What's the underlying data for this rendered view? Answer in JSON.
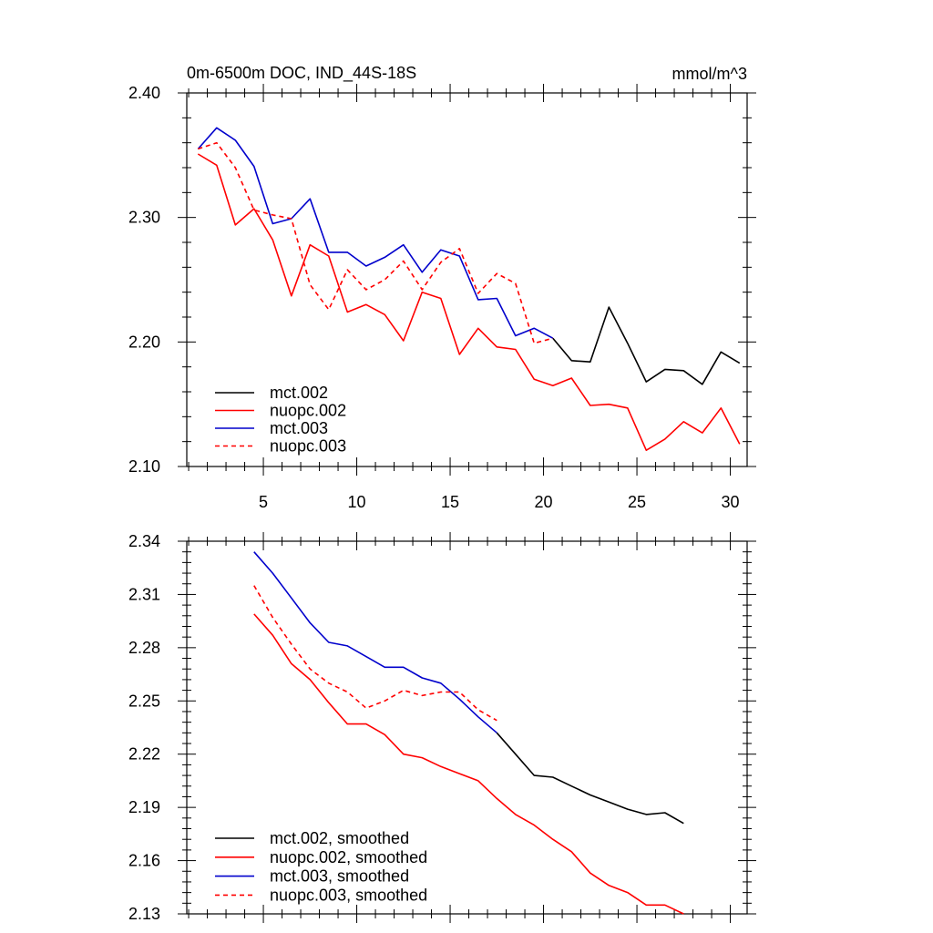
{
  "chart_data": [
    {
      "type": "line",
      "title": "0m-6500m DOC, IND_44S-18S",
      "units": "mmol/m^3",
      "xlabel": "",
      "ylabel": "",
      "xlim": [
        0.9,
        30.9
      ],
      "ylim": [
        2.1,
        2.4
      ],
      "yticks": [
        2.1,
        2.2,
        2.3,
        2.4
      ],
      "ytick_labels": [
        "2.10",
        "2.20",
        "2.30",
        "2.40"
      ],
      "xticks": [
        5,
        10,
        15,
        20,
        25,
        30
      ],
      "xtick_labels": [
        "5",
        "10",
        "15",
        "20",
        "25",
        "30"
      ],
      "legend_position": "bottom-left",
      "series": [
        {
          "name": "mct.002",
          "color": "#000000",
          "dash": "solid",
          "x": [
            20.5,
            21.5,
            22.5,
            23.5,
            24.5,
            25.5,
            26.5,
            27.5,
            28.5,
            29.5,
            30.5
          ],
          "values": [
            2.203,
            2.185,
            2.184,
            2.228,
            2.199,
            2.168,
            2.178,
            2.177,
            2.166,
            2.192,
            2.183
          ]
        },
        {
          "name": "nuopc.002",
          "color": "#ff0000",
          "dash": "solid",
          "x": [
            1.5,
            2.5,
            3.5,
            4.5,
            5.5,
            6.5,
            7.5,
            8.5,
            9.5,
            10.5,
            11.5,
            12.5,
            13.5,
            14.5,
            15.5,
            16.5,
            17.5,
            18.5,
            19.5,
            20.5,
            21.5,
            22.5,
            23.5,
            24.5,
            25.5,
            26.5,
            27.5,
            28.5,
            29.5,
            30.5
          ],
          "values": [
            2.351,
            2.342,
            2.294,
            2.307,
            2.282,
            2.237,
            2.278,
            2.269,
            2.224,
            2.23,
            2.222,
            2.201,
            2.24,
            2.235,
            2.19,
            2.211,
            2.196,
            2.194,
            2.17,
            2.165,
            2.171,
            2.149,
            2.15,
            2.147,
            2.113,
            2.122,
            2.136,
            2.127,
            2.147,
            2.118
          ]
        },
        {
          "name": "mct.003",
          "color": "#0000cc",
          "dash": "solid",
          "x": [
            1.5,
            2.5,
            3.5,
            4.5,
            5.5,
            6.5,
            7.5,
            8.5,
            9.5,
            10.5,
            11.5,
            12.5,
            13.5,
            14.5,
            15.5,
            16.5,
            17.5,
            18.5,
            19.5,
            20.5
          ],
          "values": [
            2.355,
            2.372,
            2.362,
            2.341,
            2.295,
            2.299,
            2.315,
            2.272,
            2.272,
            2.261,
            2.268,
            2.278,
            2.256,
            2.274,
            2.269,
            2.234,
            2.235,
            2.205,
            2.211,
            2.203
          ]
        },
        {
          "name": "nuopc.003",
          "color": "#ff0000",
          "dash": "dashed",
          "x": [
            1.5,
            2.5,
            3.5,
            4.5,
            5.5,
            6.5,
            7.5,
            8.5,
            9.5,
            10.5,
            11.5,
            12.5,
            13.5,
            14.5,
            15.5,
            16.5,
            17.5,
            18.5,
            19.5,
            20.5
          ],
          "values": [
            2.355,
            2.36,
            2.34,
            2.306,
            2.302,
            2.299,
            2.246,
            2.226,
            2.258,
            2.242,
            2.25,
            2.265,
            2.242,
            2.264,
            2.275,
            2.239,
            2.255,
            2.247,
            2.199,
            2.203
          ]
        }
      ]
    },
    {
      "type": "line",
      "title": "",
      "units": "",
      "xlabel": "",
      "ylabel": "",
      "xlim": [
        0.9,
        30.9
      ],
      "ylim": [
        2.13,
        2.34
      ],
      "yticks": [
        2.13,
        2.16,
        2.19,
        2.22,
        2.25,
        2.28,
        2.31,
        2.34
      ],
      "ytick_labels": [
        "2.13",
        "2.16",
        "2.19",
        "2.22",
        "2.25",
        "2.28",
        "2.31",
        "2.34"
      ],
      "xticks": [
        5,
        10,
        15,
        20,
        25,
        30
      ],
      "xtick_labels": [],
      "legend_position": "bottom-left",
      "series": [
        {
          "name": "mct.002, smoothed",
          "color": "#000000",
          "dash": "solid",
          "x": [
            17.5,
            18.5,
            19.5,
            20.5,
            21.5,
            22.5,
            23.5,
            24.5,
            25.5,
            26.5,
            27.5
          ],
          "values": [
            2.232,
            2.22,
            2.208,
            2.207,
            2.202,
            2.197,
            2.193,
            2.189,
            2.186,
            2.187,
            2.181
          ]
        },
        {
          "name": "nuopc.002, smoothed",
          "color": "#ff0000",
          "dash": "solid",
          "x": [
            4.5,
            5.5,
            6.5,
            7.5,
            8.5,
            9.5,
            10.5,
            11.5,
            12.5,
            13.5,
            14.5,
            15.5,
            16.5,
            17.5,
            18.5,
            19.5,
            20.5,
            21.5,
            22.5,
            23.5,
            24.5,
            25.5,
            26.5,
            27.5
          ],
          "values": [
            2.299,
            2.287,
            2.271,
            2.262,
            2.249,
            2.237,
            2.237,
            2.231,
            2.22,
            2.218,
            2.213,
            2.209,
            2.205,
            2.195,
            2.186,
            2.18,
            2.172,
            2.165,
            2.153,
            2.146,
            2.142,
            2.135,
            2.135,
            2.13
          ]
        },
        {
          "name": "mct.003, smoothed",
          "color": "#0000cc",
          "dash": "solid",
          "x": [
            4.5,
            5.5,
            6.5,
            7.5,
            8.5,
            9.5,
            10.5,
            11.5,
            12.5,
            13.5,
            14.5,
            15.5,
            16.5,
            17.5
          ],
          "values": [
            2.334,
            2.322,
            2.308,
            2.294,
            2.283,
            2.281,
            2.275,
            2.269,
            2.269,
            2.263,
            2.26,
            2.251,
            2.241,
            2.232
          ]
        },
        {
          "name": "nuopc.003, smoothed",
          "color": "#ff0000",
          "dash": "dashed",
          "x": [
            4.5,
            5.5,
            6.5,
            7.5,
            8.5,
            9.5,
            10.5,
            11.5,
            12.5,
            13.5,
            14.5,
            15.5,
            16.5,
            17.5
          ],
          "values": [
            2.315,
            2.297,
            2.282,
            2.268,
            2.26,
            2.255,
            2.246,
            2.25,
            2.256,
            2.253,
            2.255,
            2.255,
            2.245,
            2.239
          ]
        }
      ]
    }
  ]
}
